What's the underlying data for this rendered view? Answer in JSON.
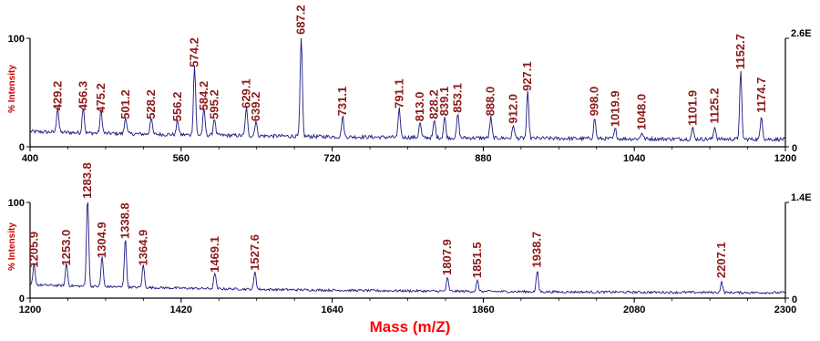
{
  "chart_data": [
    {
      "type": "line",
      "title": "",
      "xlabel": "Mass (m/Z)",
      "ylabel": "% Intensity",
      "xlim": [
        400,
        1200
      ],
      "ylim": [
        0,
        100
      ],
      "x_ticks": [
        "400",
        "560",
        "720",
        "880",
        "1040",
        "1200"
      ],
      "y_ticks": [
        "0",
        "100"
      ],
      "right_axis": {
        "top": "2.6E",
        "bottom": "0"
      },
      "line_color": "#1a1a80",
      "label_color": "#8b1a1a",
      "peaks": [
        {
          "x": 429.2,
          "y": 30,
          "label": "429.2"
        },
        {
          "x": 456.3,
          "y": 30,
          "label": "456.3"
        },
        {
          "x": 475.2,
          "y": 28,
          "label": "475.2"
        },
        {
          "x": 501.2,
          "y": 22,
          "label": "501.2"
        },
        {
          "x": 528.2,
          "y": 22,
          "label": "528.2"
        },
        {
          "x": 556.2,
          "y": 20,
          "label": "556.2"
        },
        {
          "x": 574.2,
          "y": 70,
          "label": "574.2"
        },
        {
          "x": 584.2,
          "y": 30,
          "label": "584.2"
        },
        {
          "x": 595.2,
          "y": 22,
          "label": "595.2"
        },
        {
          "x": 629.1,
          "y": 32,
          "label": "629.1"
        },
        {
          "x": 639.2,
          "y": 20,
          "label": "639.2"
        },
        {
          "x": 687.2,
          "y": 100,
          "label": "687.2"
        },
        {
          "x": 731.1,
          "y": 25,
          "label": "731.1"
        },
        {
          "x": 791.1,
          "y": 32,
          "label": "791.1"
        },
        {
          "x": 813.0,
          "y": 20,
          "label": "813.0"
        },
        {
          "x": 828.2,
          "y": 22,
          "label": "828.2"
        },
        {
          "x": 839.1,
          "y": 25,
          "label": "839.1"
        },
        {
          "x": 853.1,
          "y": 28,
          "label": "853.1"
        },
        {
          "x": 888.0,
          "y": 25,
          "label": "888.0"
        },
        {
          "x": 912.0,
          "y": 18,
          "label": "912.0"
        },
        {
          "x": 927.1,
          "y": 48,
          "label": "927.1"
        },
        {
          "x": 998.0,
          "y": 25,
          "label": "998.0"
        },
        {
          "x": 1019.9,
          "y": 15,
          "label": "1019.9"
        },
        {
          "x": 1048.0,
          "y": 12,
          "label": "1048.0"
        },
        {
          "x": 1101.9,
          "y": 16,
          "label": "1101.9"
        },
        {
          "x": 1125.2,
          "y": 18,
          "label": "1125.2"
        },
        {
          "x": 1152.7,
          "y": 68,
          "label": "1152.7"
        },
        {
          "x": 1174.7,
          "y": 28,
          "label": "1174.7"
        }
      ]
    },
    {
      "type": "line",
      "title": "",
      "xlabel": "Mass (m/Z)",
      "ylabel": "% Intensity",
      "xlim": [
        1200,
        2300
      ],
      "ylim": [
        0,
        100
      ],
      "x_ticks": [
        "1200",
        "1420",
        "1640",
        "1860",
        "2080",
        "2300"
      ],
      "y_ticks": [
        "0",
        "100"
      ],
      "right_axis": {
        "top": "1.4E",
        "bottom": "0"
      },
      "line_color": "#1a1a80",
      "label_color": "#8b1a1a",
      "peaks": [
        {
          "x": 1205.9,
          "y": 28,
          "label": "1205.9"
        },
        {
          "x": 1253.0,
          "y": 30,
          "label": "1253.0"
        },
        {
          "x": 1283.8,
          "y": 100,
          "label": "1283.8"
        },
        {
          "x": 1304.9,
          "y": 38,
          "label": "1304.9"
        },
        {
          "x": 1338.8,
          "y": 58,
          "label": "1338.8"
        },
        {
          "x": 1364.9,
          "y": 30,
          "label": "1364.9"
        },
        {
          "x": 1469.1,
          "y": 23,
          "label": "1469.1"
        },
        {
          "x": 1527.6,
          "y": 25,
          "label": "1527.6"
        },
        {
          "x": 1807.9,
          "y": 20,
          "label": "1807.9"
        },
        {
          "x": 1851.5,
          "y": 17,
          "label": "1851.5"
        },
        {
          "x": 1938.7,
          "y": 28,
          "label": "1938.7"
        },
        {
          "x": 2207.1,
          "y": 17,
          "label": "2207.1"
        }
      ]
    }
  ]
}
